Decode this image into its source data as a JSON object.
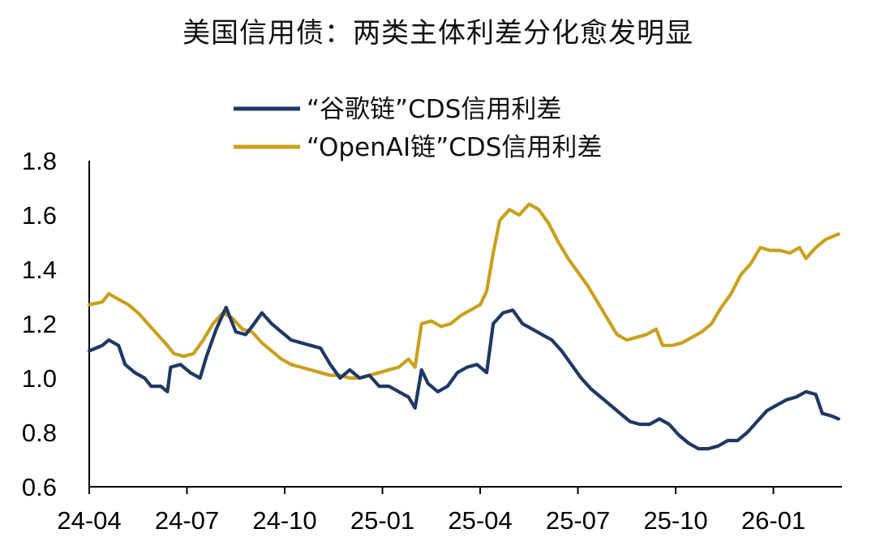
{
  "chart_data": {
    "type": "line",
    "title": "美国信用债：两类主体利差分化愈发明显",
    "xlabel": "",
    "ylabel": "",
    "ylim": [
      0.6,
      1.8
    ],
    "yticks": [
      "0.6",
      "0.8",
      "1.0",
      "1.2",
      "1.4",
      "1.6",
      "1.8"
    ],
    "xticks": [
      "24-04",
      "24-07",
      "24-10",
      "25-01",
      "25-04",
      "25-07",
      "25-10",
      "26-01"
    ],
    "x_range_months": [
      0,
      23
    ],
    "grid": false,
    "legend_position": "top-center",
    "series": [
      {
        "name": "“谷歌链”CDS信用利差",
        "color": "#1f3864",
        "points": [
          [
            0.0,
            1.1
          ],
          [
            0.4,
            1.12
          ],
          [
            0.6,
            1.14
          ],
          [
            0.9,
            1.12
          ],
          [
            1.1,
            1.05
          ],
          [
            1.4,
            1.02
          ],
          [
            1.7,
            1.0
          ],
          [
            1.9,
            0.97
          ],
          [
            2.2,
            0.97
          ],
          [
            2.4,
            0.95
          ],
          [
            2.5,
            1.04
          ],
          [
            2.8,
            1.05
          ],
          [
            3.1,
            1.02
          ],
          [
            3.4,
            1.0
          ],
          [
            3.6,
            1.08
          ],
          [
            3.9,
            1.18
          ],
          [
            4.2,
            1.26
          ],
          [
            4.5,
            1.17
          ],
          [
            4.8,
            1.16
          ],
          [
            5.0,
            1.19
          ],
          [
            5.3,
            1.24
          ],
          [
            5.6,
            1.2
          ],
          [
            5.9,
            1.17
          ],
          [
            6.2,
            1.14
          ],
          [
            6.5,
            1.13
          ],
          [
            6.8,
            1.12
          ],
          [
            7.1,
            1.11
          ],
          [
            7.4,
            1.05
          ],
          [
            7.7,
            1.0
          ],
          [
            8.0,
            1.03
          ],
          [
            8.3,
            1.0
          ],
          [
            8.6,
            1.01
          ],
          [
            8.9,
            0.97
          ],
          [
            9.2,
            0.97
          ],
          [
            9.5,
            0.95
          ],
          [
            9.8,
            0.93
          ],
          [
            10.0,
            0.89
          ],
          [
            10.2,
            1.03
          ],
          [
            10.4,
            0.98
          ],
          [
            10.7,
            0.95
          ],
          [
            11.0,
            0.97
          ],
          [
            11.3,
            1.02
          ],
          [
            11.6,
            1.04
          ],
          [
            11.9,
            1.05
          ],
          [
            12.2,
            1.02
          ],
          [
            12.4,
            1.2
          ],
          [
            12.7,
            1.24
          ],
          [
            13.0,
            1.25
          ],
          [
            13.3,
            1.2
          ],
          [
            13.6,
            1.18
          ],
          [
            13.9,
            1.16
          ],
          [
            14.2,
            1.14
          ],
          [
            14.5,
            1.1
          ],
          [
            14.8,
            1.05
          ],
          [
            15.1,
            1.0
          ],
          [
            15.4,
            0.96
          ],
          [
            15.7,
            0.93
          ],
          [
            16.0,
            0.9
          ],
          [
            16.3,
            0.87
          ],
          [
            16.6,
            0.84
          ],
          [
            16.9,
            0.83
          ],
          [
            17.2,
            0.83
          ],
          [
            17.5,
            0.85
          ],
          [
            17.8,
            0.83
          ],
          [
            18.1,
            0.79
          ],
          [
            18.4,
            0.76
          ],
          [
            18.7,
            0.74
          ],
          [
            19.0,
            0.74
          ],
          [
            19.3,
            0.75
          ],
          [
            19.6,
            0.77
          ],
          [
            19.9,
            0.77
          ],
          [
            20.2,
            0.8
          ],
          [
            20.5,
            0.84
          ],
          [
            20.8,
            0.88
          ],
          [
            21.1,
            0.9
          ],
          [
            21.4,
            0.92
          ],
          [
            21.7,
            0.93
          ],
          [
            22.0,
            0.95
          ],
          [
            22.3,
            0.94
          ],
          [
            22.5,
            0.87
          ],
          [
            22.8,
            0.86
          ],
          [
            23.0,
            0.85
          ]
        ]
      },
      {
        "name": "“OpenAI链”CDS信用利差",
        "color": "#c8a11e",
        "points": [
          [
            0.0,
            1.27
          ],
          [
            0.4,
            1.28
          ],
          [
            0.6,
            1.31
          ],
          [
            0.9,
            1.29
          ],
          [
            1.2,
            1.27
          ],
          [
            1.5,
            1.24
          ],
          [
            1.8,
            1.2
          ],
          [
            2.1,
            1.16
          ],
          [
            2.4,
            1.12
          ],
          [
            2.6,
            1.09
          ],
          [
            2.9,
            1.08
          ],
          [
            3.2,
            1.09
          ],
          [
            3.5,
            1.14
          ],
          [
            3.8,
            1.2
          ],
          [
            4.1,
            1.24
          ],
          [
            4.4,
            1.22
          ],
          [
            4.7,
            1.18
          ],
          [
            5.0,
            1.17
          ],
          [
            5.3,
            1.13
          ],
          [
            5.6,
            1.1
          ],
          [
            5.9,
            1.07
          ],
          [
            6.2,
            1.05
          ],
          [
            6.5,
            1.04
          ],
          [
            6.8,
            1.03
          ],
          [
            7.1,
            1.02
          ],
          [
            7.4,
            1.01
          ],
          [
            7.7,
            1.01
          ],
          [
            8.0,
            1.0
          ],
          [
            8.3,
            1.0
          ],
          [
            8.6,
            1.01
          ],
          [
            8.9,
            1.02
          ],
          [
            9.2,
            1.03
          ],
          [
            9.5,
            1.04
          ],
          [
            9.8,
            1.07
          ],
          [
            10.0,
            1.04
          ],
          [
            10.2,
            1.2
          ],
          [
            10.5,
            1.21
          ],
          [
            10.8,
            1.19
          ],
          [
            11.1,
            1.2
          ],
          [
            11.4,
            1.23
          ],
          [
            11.7,
            1.25
          ],
          [
            12.0,
            1.27
          ],
          [
            12.2,
            1.32
          ],
          [
            12.4,
            1.46
          ],
          [
            12.6,
            1.58
          ],
          [
            12.9,
            1.62
          ],
          [
            13.2,
            1.6
          ],
          [
            13.5,
            1.64
          ],
          [
            13.8,
            1.62
          ],
          [
            14.1,
            1.57
          ],
          [
            14.4,
            1.5
          ],
          [
            14.7,
            1.44
          ],
          [
            15.0,
            1.39
          ],
          [
            15.3,
            1.34
          ],
          [
            15.6,
            1.28
          ],
          [
            15.9,
            1.22
          ],
          [
            16.2,
            1.16
          ],
          [
            16.5,
            1.14
          ],
          [
            16.8,
            1.15
          ],
          [
            17.1,
            1.16
          ],
          [
            17.4,
            1.18
          ],
          [
            17.6,
            1.12
          ],
          [
            17.9,
            1.12
          ],
          [
            18.2,
            1.13
          ],
          [
            18.5,
            1.15
          ],
          [
            18.8,
            1.17
          ],
          [
            19.1,
            1.2
          ],
          [
            19.4,
            1.26
          ],
          [
            19.7,
            1.31
          ],
          [
            20.0,
            1.38
          ],
          [
            20.3,
            1.42
          ],
          [
            20.6,
            1.48
          ],
          [
            20.9,
            1.47
          ],
          [
            21.2,
            1.47
          ],
          [
            21.5,
            1.46
          ],
          [
            21.8,
            1.48
          ],
          [
            22.0,
            1.44
          ],
          [
            22.3,
            1.48
          ],
          [
            22.6,
            1.51
          ],
          [
            22.8,
            1.52
          ],
          [
            23.0,
            1.53
          ]
        ]
      }
    ]
  }
}
